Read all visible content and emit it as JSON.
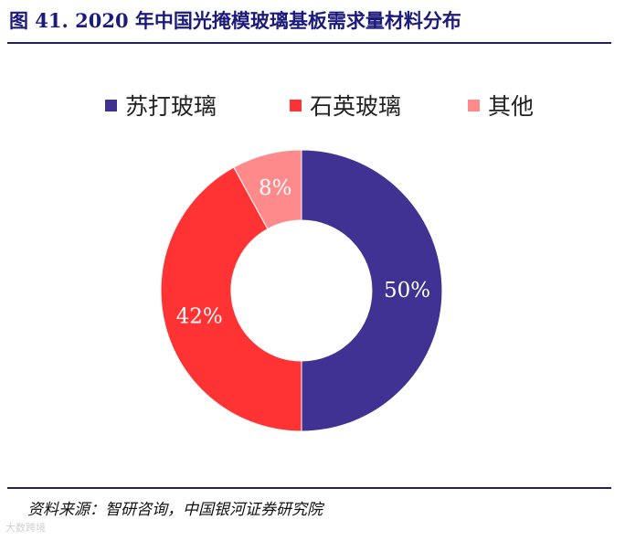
{
  "header": {
    "title": "图 41. 2020 年中国光掩模玻璃基板需求量材料分布"
  },
  "footer": {
    "source": "资料来源：智研咨询，中国银河证券研究院",
    "watermark": "大数跨境"
  },
  "chart_data": {
    "type": "pie",
    "style": "donut",
    "legend_position": "top",
    "categories": [
      "苏打玻璃",
      "石英玻璃",
      "其他"
    ],
    "values": [
      50,
      42,
      8
    ],
    "labels": [
      "50%",
      "42%",
      "8%"
    ],
    "colors": [
      "#3f3293",
      "#ff3334",
      "#ff8a8c"
    ]
  }
}
